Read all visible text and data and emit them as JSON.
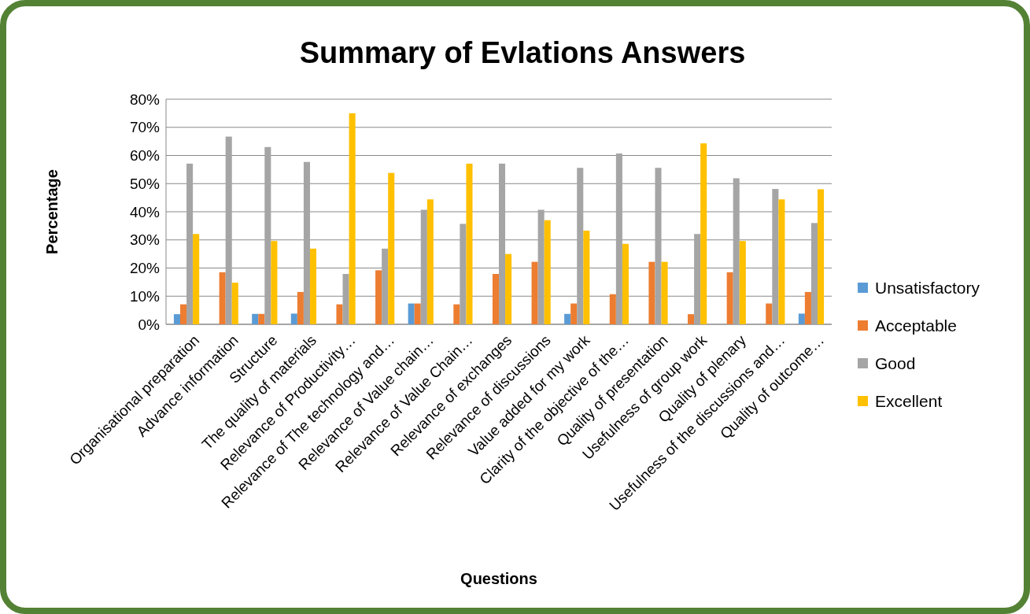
{
  "chart_data": {
    "type": "bar",
    "title": "Summary of Evlations Answers",
    "xlabel": "Questions",
    "ylabel": "Percentage",
    "categories": [
      "Organisational preparation",
      "Advance information",
      "Structure",
      "The quality of materials",
      "Relevance of Productivity…",
      "Relevance of The technology and…",
      "Relevance of Value chain…",
      "Relevance of Value Chain…",
      "Relevance of exchanges",
      "Relevance of discussions",
      "Value added for my work",
      "Clarity of the objective of the…",
      "Quality of presentation",
      "Usefulness of group work",
      "Quality of plenary",
      "Usefulness of the discussions and…",
      "Quality of outcome…"
    ],
    "series": [
      {
        "name": "Unsatisfactory",
        "color": "#5b9bd5",
        "values": [
          3.6,
          0,
          3.7,
          3.8,
          0,
          0,
          7.4,
          0,
          0,
          0,
          3.7,
          0,
          0,
          0,
          0,
          0,
          3.8
        ]
      },
      {
        "name": "Acceptable",
        "color": "#ed7d31",
        "values": [
          7.1,
          18.5,
          3.7,
          11.5,
          7.1,
          19.2,
          7.4,
          7.1,
          17.9,
          22.2,
          7.4,
          10.7,
          22.2,
          3.6,
          18.5,
          7.4,
          11.5
        ]
      },
      {
        "name": "Good",
        "color": "#a5a5a5",
        "values": [
          57.1,
          66.7,
          63,
          57.7,
          17.9,
          26.9,
          40.7,
          35.7,
          57.1,
          40.7,
          55.6,
          60.7,
          55.6,
          32.1,
          51.9,
          48.1,
          36
        ]
      },
      {
        "name": "Excellent",
        "color": "#ffc000",
        "values": [
          32.1,
          14.8,
          29.6,
          26.9,
          75,
          53.8,
          44.4,
          57.1,
          25,
          37,
          33.3,
          28.6,
          22.2,
          64.3,
          29.6,
          44.4,
          48
        ]
      }
    ],
    "ylim": [
      0,
      80
    ],
    "yticks": [
      {
        "value": 0,
        "label": "0%"
      },
      {
        "value": 10,
        "label": "10%"
      },
      {
        "value": 20,
        "label": "20%"
      },
      {
        "value": 30,
        "label": "30%"
      },
      {
        "value": 40,
        "label": "40%"
      },
      {
        "value": 50,
        "label": "50%"
      },
      {
        "value": 60,
        "label": "60%"
      },
      {
        "value": 70,
        "label": "70%"
      },
      {
        "value": 80,
        "label": "80%"
      }
    ],
    "grid": "y",
    "legend": "right"
  }
}
